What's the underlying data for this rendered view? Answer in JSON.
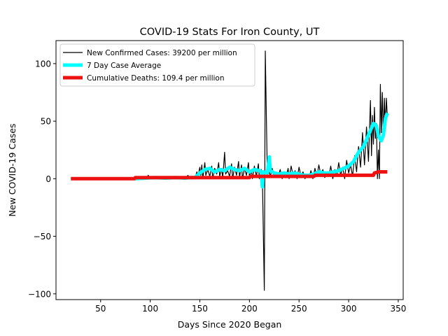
{
  "chart_data": {
    "type": "line",
    "title": "COVID-19 Stats For Iron County, UT",
    "xlabel": "Days Since 2020 Began",
    "ylabel": "New COVID-19 Cases",
    "xlim": [
      5,
      355
    ],
    "ylim": [
      -105,
      120
    ],
    "xticks": [
      50,
      100,
      150,
      200,
      250,
      300,
      350
    ],
    "yticks": [
      -100,
      -50,
      0,
      50,
      100
    ],
    "grid": false,
    "legend_position": "top-left",
    "series": [
      {
        "name": "New Confirmed Cases: 39200 per million",
        "color": "#000000",
        "points": [
          [
            20,
            0
          ],
          [
            84,
            0
          ],
          [
            85,
            1
          ],
          [
            88,
            0
          ],
          [
            90,
            2
          ],
          [
            92,
            0
          ],
          [
            94,
            1
          ],
          [
            96,
            0
          ],
          [
            98,
            3
          ],
          [
            100,
            0
          ],
          [
            103,
            1
          ],
          [
            105,
            0
          ],
          [
            108,
            2
          ],
          [
            110,
            0
          ],
          [
            112,
            1
          ],
          [
            115,
            0
          ],
          [
            118,
            2
          ],
          [
            120,
            0
          ],
          [
            123,
            1
          ],
          [
            125,
            0
          ],
          [
            128,
            2
          ],
          [
            130,
            0
          ],
          [
            133,
            1
          ],
          [
            135,
            0
          ],
          [
            138,
            3
          ],
          [
            140,
            0
          ],
          [
            142,
            1
          ],
          [
            145,
            0
          ],
          [
            147,
            6
          ],
          [
            148,
            2
          ],
          [
            150,
            10
          ],
          [
            151,
            3
          ],
          [
            152,
            12
          ],
          [
            153,
            0
          ],
          [
            155,
            14
          ],
          [
            156,
            3
          ],
          [
            158,
            8
          ],
          [
            160,
            2
          ],
          [
            162,
            11
          ],
          [
            163,
            0
          ],
          [
            165,
            9
          ],
          [
            167,
            4
          ],
          [
            169,
            14
          ],
          [
            170,
            2
          ],
          [
            172,
            9
          ],
          [
            173,
            0
          ],
          [
            175,
            23
          ],
          [
            176,
            4
          ],
          [
            178,
            7
          ],
          [
            180,
            2
          ],
          [
            182,
            13
          ],
          [
            183,
            0
          ],
          [
            185,
            10
          ],
          [
            187,
            3
          ],
          [
            189,
            15
          ],
          [
            190,
            1
          ],
          [
            192,
            12
          ],
          [
            193,
            0
          ],
          [
            195,
            9
          ],
          [
            197,
            3
          ],
          [
            199,
            14
          ],
          [
            200,
            2
          ],
          [
            202,
            7
          ],
          [
            203,
            0
          ],
          [
            205,
            11
          ],
          [
            207,
            2
          ],
          [
            209,
            13
          ],
          [
            210,
            0
          ],
          [
            212,
            8
          ],
          [
            213,
            2
          ],
          [
            215,
            -97
          ],
          [
            216,
            111
          ],
          [
            218,
            3
          ],
          [
            220,
            6
          ],
          [
            221,
            2
          ],
          [
            223,
            9
          ],
          [
            225,
            1
          ],
          [
            227,
            4
          ],
          [
            229,
            2
          ],
          [
            231,
            8
          ],
          [
            233,
            0
          ],
          [
            235,
            6
          ],
          [
            237,
            2
          ],
          [
            239,
            9
          ],
          [
            240,
            0
          ],
          [
            242,
            11
          ],
          [
            244,
            3
          ],
          [
            246,
            7
          ],
          [
            248,
            0
          ],
          [
            250,
            10
          ],
          [
            252,
            2
          ],
          [
            254,
            6
          ],
          [
            256,
            0
          ],
          [
            258,
            4
          ],
          [
            260,
            1
          ],
          [
            262,
            7
          ],
          [
            264,
            0
          ],
          [
            266,
            9
          ],
          [
            268,
            2
          ],
          [
            270,
            12
          ],
          [
            272,
            3
          ],
          [
            274,
            8
          ],
          [
            276,
            1
          ],
          [
            278,
            6
          ],
          [
            280,
            2
          ],
          [
            282,
            11
          ],
          [
            284,
            0
          ],
          [
            286,
            8
          ],
          [
            288,
            2
          ],
          [
            290,
            14
          ],
          [
            292,
            3
          ],
          [
            294,
            10
          ],
          [
            296,
            0
          ],
          [
            298,
            16
          ],
          [
            300,
            5
          ],
          [
            302,
            12
          ],
          [
            304,
            2
          ],
          [
            306,
            20
          ],
          [
            308,
            6
          ],
          [
            310,
            28
          ],
          [
            312,
            10
          ],
          [
            314,
            40
          ],
          [
            316,
            12
          ],
          [
            318,
            45
          ],
          [
            320,
            15
          ],
          [
            322,
            68
          ],
          [
            323,
            20
          ],
          [
            324,
            55
          ],
          [
            325,
            30
          ],
          [
            326,
            62
          ],
          [
            327,
            35
          ],
          [
            328,
            48
          ],
          [
            329,
            0
          ],
          [
            330,
            25
          ],
          [
            331,
            0
          ],
          [
            332,
            82
          ],
          [
            333,
            40
          ],
          [
            334,
            75
          ],
          [
            335,
            35
          ],
          [
            336,
            70
          ],
          [
            337,
            45
          ],
          [
            338,
            70
          ],
          [
            339,
            55
          ]
        ]
      },
      {
        "name": "7 Day Case Average",
        "color": "#00ffff",
        "points": [
          [
            85,
            0
          ],
          [
            95,
            0.5
          ],
          [
            105,
            1
          ],
          [
            115,
            0.5
          ],
          [
            125,
            1
          ],
          [
            135,
            0.5
          ],
          [
            140,
            1
          ],
          [
            145,
            1
          ],
          [
            150,
            5
          ],
          [
            155,
            8
          ],
          [
            160,
            9
          ],
          [
            165,
            6
          ],
          [
            170,
            8
          ],
          [
            175,
            7
          ],
          [
            180,
            10
          ],
          [
            185,
            8
          ],
          [
            190,
            7
          ],
          [
            195,
            9
          ],
          [
            200,
            6
          ],
          [
            205,
            8
          ],
          [
            210,
            7
          ],
          [
            212,
            6
          ],
          [
            213,
            -7
          ],
          [
            214,
            6
          ],
          [
            218,
            5
          ],
          [
            220,
            19
          ],
          [
            221,
            7
          ],
          [
            225,
            5
          ],
          [
            230,
            4
          ],
          [
            235,
            5
          ],
          [
            240,
            4
          ],
          [
            245,
            5
          ],
          [
            250,
            4
          ],
          [
            255,
            3
          ],
          [
            260,
            3
          ],
          [
            265,
            4
          ],
          [
            270,
            6
          ],
          [
            275,
            5
          ],
          [
            280,
            5
          ],
          [
            285,
            6
          ],
          [
            290,
            7
          ],
          [
            295,
            9
          ],
          [
            300,
            11
          ],
          [
            305,
            15
          ],
          [
            310,
            23
          ],
          [
            315,
            28
          ],
          [
            320,
            38
          ],
          [
            325,
            48
          ],
          [
            328,
            46
          ],
          [
            330,
            37
          ],
          [
            333,
            33
          ],
          [
            335,
            38
          ],
          [
            337,
            52
          ],
          [
            339,
            57
          ]
        ]
      },
      {
        "name": "Cumulative Deaths: 109.4 per million",
        "color": "#ee1111",
        "points": [
          [
            20,
            0
          ],
          [
            84,
            0
          ],
          [
            85,
            1
          ],
          [
            150,
            1
          ],
          [
            200,
            1
          ],
          [
            201,
            2
          ],
          [
            265,
            2
          ],
          [
            266,
            3
          ],
          [
            325,
            3
          ],
          [
            326,
            5
          ],
          [
            330,
            6
          ],
          [
            339,
            6
          ]
        ]
      }
    ]
  }
}
